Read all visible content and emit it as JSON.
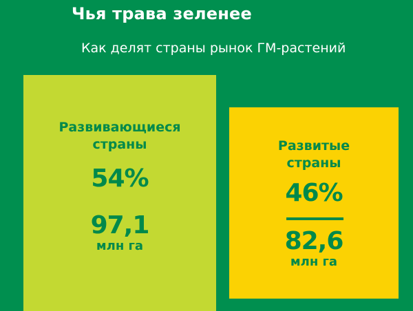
{
  "title": "Чья трава зеленее",
  "subtitle": "Как делят страны рынок ГМ-растений",
  "colors": {
    "background": "#008f4f",
    "developing_box": "#c3d932",
    "developed_box": "#fbd203",
    "text_accent": "#00894b"
  },
  "chart_data": {
    "type": "area",
    "title": "Чья трава зеленее",
    "subtitle": "Как делят страны рынок ГМ-растений",
    "series": [
      {
        "name": "Развивающиеся страны",
        "percent_label": "54%",
        "percent": 54,
        "value_label": "97,1",
        "value": 97.1,
        "unit": "млн га"
      },
      {
        "name": "Развитые страны",
        "percent_label": "46%",
        "percent": 46,
        "value_label": "82,6",
        "value": 82.6,
        "unit": "млн га"
      }
    ]
  }
}
